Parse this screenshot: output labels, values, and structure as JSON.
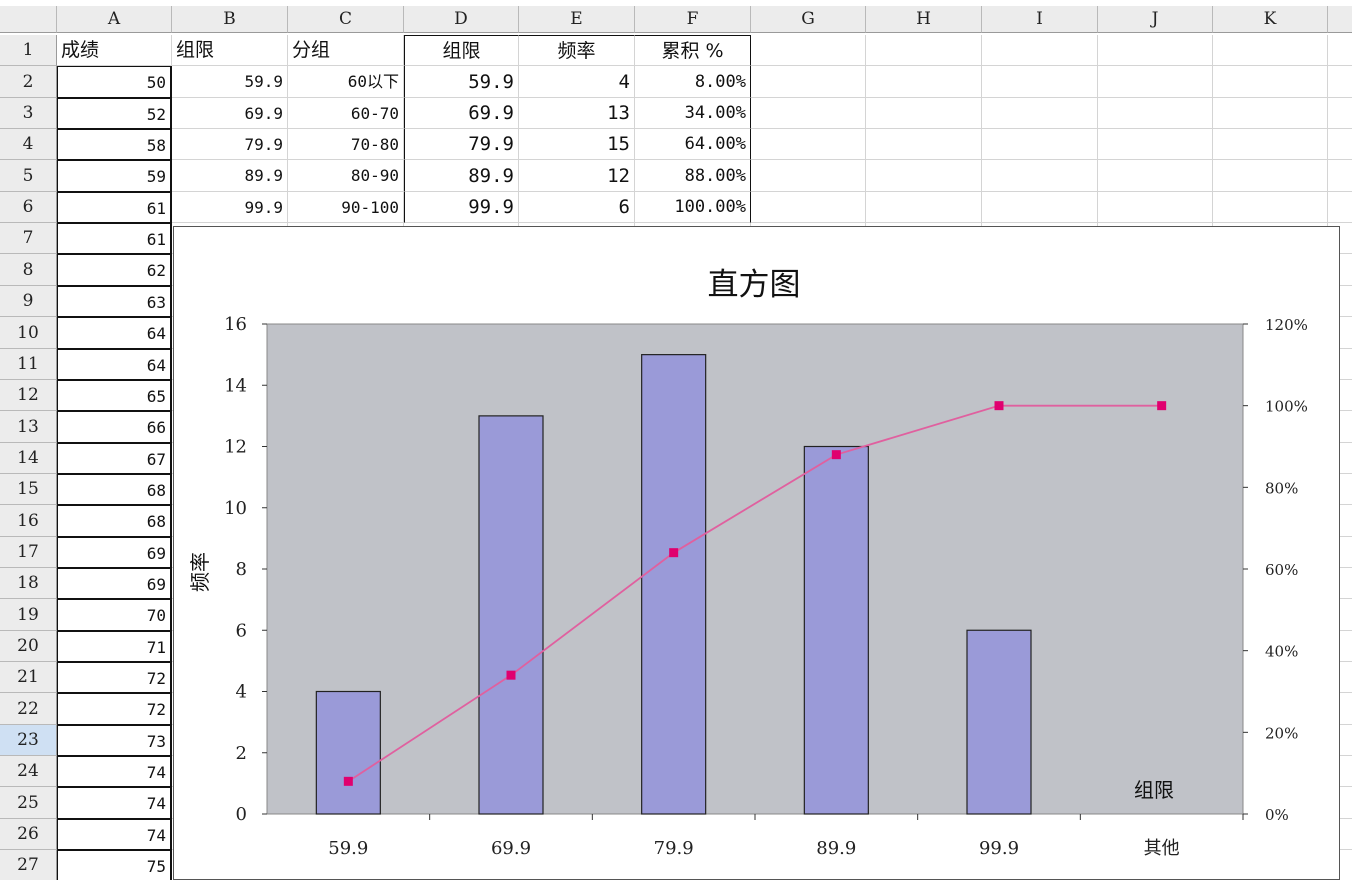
{
  "spreadsheet": {
    "column_headers": [
      "A",
      "B",
      "C",
      "D",
      "E",
      "F",
      "G",
      "H",
      "I",
      "J",
      "K"
    ],
    "row_numbers": [
      "1",
      "2",
      "3",
      "4",
      "5",
      "6",
      "7",
      "8",
      "9",
      "10",
      "11",
      "12",
      "13",
      "14",
      "15",
      "16",
      "17",
      "18",
      "19",
      "20",
      "21",
      "22",
      "23",
      "24",
      "25",
      "26",
      "27"
    ],
    "selected_row": "23",
    "header_row": {
      "a1": "成绩",
      "b1": "组限",
      "c1": "分组",
      "d1": "组限",
      "e1": "频率",
      "f1": "累积 %"
    },
    "col_a_scores": [
      "50",
      "52",
      "58",
      "59",
      "61",
      "61",
      "62",
      "63",
      "64",
      "64",
      "65",
      "66",
      "67",
      "68",
      "68",
      "69",
      "69",
      "70",
      "71",
      "72",
      "72",
      "73",
      "74",
      "74",
      "74",
      "75"
    ],
    "col_b_limits": [
      "59.9",
      "69.9",
      "79.9",
      "89.9",
      "99.9"
    ],
    "col_c_groups": [
      "60以下",
      "60-70",
      "70-80",
      "80-90",
      "90-100"
    ],
    "col_d_limits": [
      "59.9",
      "69.9",
      "79.9",
      "89.9",
      "99.9"
    ],
    "col_e_freq": [
      "4",
      "13",
      "15",
      "12",
      "6"
    ],
    "col_f_cum": [
      "8.00%",
      "34.00%",
      "64.00%",
      "88.00%",
      "100.00%"
    ]
  },
  "chart_data": {
    "type": "bar",
    "title": "直方图",
    "xlabel": "组限",
    "ylabel": "频率",
    "categories": [
      "59.9",
      "69.9",
      "79.9",
      "89.9",
      "99.9",
      "其他"
    ],
    "series": [
      {
        "name": "频率",
        "type": "bar",
        "values": [
          4,
          13,
          15,
          12,
          6,
          0
        ]
      },
      {
        "name": "累积 %",
        "type": "line",
        "axis": "right",
        "values": [
          8,
          34,
          64,
          88,
          100,
          100
        ]
      }
    ],
    "ylim": [
      0,
      16
    ],
    "y_ticks": [
      "0",
      "2",
      "4",
      "6",
      "8",
      "10",
      "12",
      "14",
      "16"
    ],
    "y2lim": [
      0,
      120
    ],
    "y2_ticks": [
      "0%",
      "20%",
      "40%",
      "60%",
      "80%",
      "100%",
      "120%"
    ],
    "grid": false,
    "legend": "none",
    "colors": {
      "bar": "#9a9ad8",
      "line": "#e0609f",
      "marker": "#e0006f",
      "plot_bg": "#c0c2c8"
    }
  }
}
